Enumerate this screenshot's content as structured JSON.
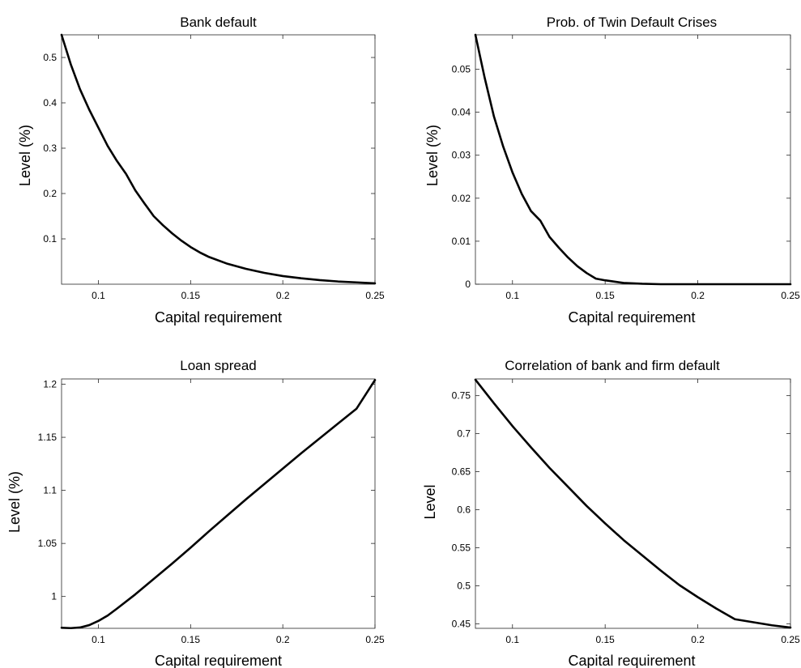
{
  "chart_data": [
    {
      "type": "line",
      "title": "Bank default",
      "xlabel": "Capital requirement",
      "ylabel": "Level (%)",
      "xlim": [
        0.08,
        0.25
      ],
      "ylim": [
        0.0,
        0.55
      ],
      "xticks": [
        0.1,
        0.15,
        0.2,
        0.25
      ],
      "xtick_labels": [
        "0.1",
        "0.15",
        "0.2",
        "0.25"
      ],
      "yticks": [
        0.1,
        0.2,
        0.3,
        0.4,
        0.5
      ],
      "ytick_labels": [
        "0.1",
        "0.2",
        "0.3",
        "0.4",
        "0.5"
      ],
      "grid": false,
      "x": [
        0.08,
        0.085,
        0.09,
        0.095,
        0.1,
        0.105,
        0.11,
        0.115,
        0.12,
        0.125,
        0.13,
        0.135,
        0.14,
        0.145,
        0.15,
        0.155,
        0.16,
        0.17,
        0.18,
        0.19,
        0.2,
        0.21,
        0.22,
        0.23,
        0.24,
        0.25
      ],
      "y": [
        0.55,
        0.485,
        0.43,
        0.385,
        0.345,
        0.305,
        0.272,
        0.243,
        0.207,
        0.178,
        0.15,
        0.13,
        0.112,
        0.096,
        0.082,
        0.07,
        0.06,
        0.045,
        0.034,
        0.025,
        0.018,
        0.013,
        0.009,
        0.006,
        0.004,
        0.002
      ]
    },
    {
      "type": "line",
      "title": "Prob. of Twin Default Crises",
      "xlabel": "Capital requirement",
      "ylabel": "Level (%)",
      "xlim": [
        0.08,
        0.25
      ],
      "ylim": [
        0.0,
        0.058
      ],
      "xticks": [
        0.1,
        0.15,
        0.2,
        0.25
      ],
      "xtick_labels": [
        "0.1",
        "0.15",
        "0.2",
        "0.25"
      ],
      "yticks": [
        0,
        0.01,
        0.02,
        0.03,
        0.04,
        0.05
      ],
      "ytick_labels": [
        "0",
        "0.01",
        "0.02",
        "0.03",
        "0.04",
        "0.05"
      ],
      "grid": false,
      "x": [
        0.08,
        0.085,
        0.09,
        0.095,
        0.1,
        0.105,
        0.11,
        0.115,
        0.12,
        0.125,
        0.13,
        0.135,
        0.14,
        0.145,
        0.15,
        0.155,
        0.16,
        0.165,
        0.17,
        0.18,
        0.19,
        0.2,
        0.21,
        0.22,
        0.23,
        0.24,
        0.25
      ],
      "y": [
        0.058,
        0.048,
        0.039,
        0.032,
        0.026,
        0.021,
        0.017,
        0.0148,
        0.011,
        0.0085,
        0.0062,
        0.0042,
        0.0026,
        0.0013,
        0.0009,
        0.0006,
        0.0003,
        0.0002,
        0.0001,
        0.0,
        0.0,
        0.0,
        0.0,
        0.0,
        0.0,
        0.0,
        0.0
      ]
    },
    {
      "type": "line",
      "title": "Loan spread",
      "xlabel": "Capital requirement",
      "ylabel": "Level (%)",
      "xlim": [
        0.08,
        0.25
      ],
      "ylim": [
        0.97,
        1.205
      ],
      "xticks": [
        0.1,
        0.15,
        0.2,
        0.25
      ],
      "xtick_labels": [
        "0.1",
        "0.15",
        "0.2",
        "0.25"
      ],
      "yticks": [
        1.0,
        1.05,
        1.1,
        1.15,
        1.2
      ],
      "ytick_labels": [
        "1",
        "1.05",
        "1.1",
        "1.15",
        "1.2"
      ],
      "grid": false,
      "x": [
        0.08,
        0.085,
        0.09,
        0.095,
        0.1,
        0.105,
        0.11,
        0.12,
        0.13,
        0.14,
        0.15,
        0.16,
        0.17,
        0.18,
        0.19,
        0.2,
        0.21,
        0.22,
        0.23,
        0.24,
        0.25
      ],
      "y": [
        0.9705,
        0.9702,
        0.9708,
        0.973,
        0.977,
        0.982,
        0.9885,
        1.002,
        1.0165,
        1.031,
        1.046,
        1.0615,
        1.0765,
        1.0915,
        1.106,
        1.1205,
        1.135,
        1.149,
        1.163,
        1.177,
        1.204
      ]
    },
    {
      "type": "line",
      "title": "Correlation of bank and firm default",
      "xlabel": "Capital requirement",
      "ylabel": "Level",
      "xlim": [
        0.08,
        0.25
      ],
      "ylim": [
        0.444,
        0.772
      ],
      "xticks": [
        0.1,
        0.15,
        0.2,
        0.25
      ],
      "xtick_labels": [
        "0.1",
        "0.15",
        "0.2",
        "0.25"
      ],
      "yticks": [
        0.45,
        0.5,
        0.55,
        0.6,
        0.65,
        0.7,
        0.75
      ],
      "ytick_labels": [
        "0.45",
        "0.5",
        "0.55",
        "0.6",
        "0.65",
        "0.7",
        "0.75"
      ],
      "grid": false,
      "x": [
        0.08,
        0.09,
        0.1,
        0.11,
        0.12,
        0.13,
        0.14,
        0.15,
        0.16,
        0.17,
        0.18,
        0.19,
        0.2,
        0.21,
        0.22,
        0.23,
        0.24,
        0.25
      ],
      "y": [
        0.771,
        0.74,
        0.71,
        0.682,
        0.655,
        0.63,
        0.605,
        0.582,
        0.56,
        0.54,
        0.52,
        0.501,
        0.485,
        0.47,
        0.456,
        0.452,
        0.448,
        0.445
      ]
    }
  ]
}
